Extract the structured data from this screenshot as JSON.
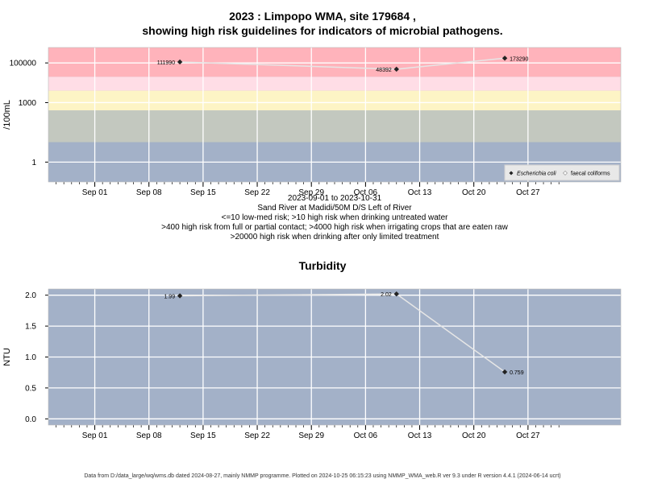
{
  "title_line1": "2023 : Limpopo WMA, site 179684 ,",
  "title_line2": "showing high risk guidelines for indicators of microbial pathogens.",
  "colors": {
    "panel_bg": "#a3b1c8",
    "band_red": "#ffb3bb",
    "band_pink": "#ffdde6",
    "band_yellow": "#fdf4c5",
    "band_green": "#c3c8bf",
    "band_blue": "#a3b1c8",
    "line": "#e6e6e6",
    "marker": "#222222"
  },
  "microbial_notes": [
    "2023-09-01 to 2023-10-31",
    "Sand River at Madidi/50M D/S Left of River",
    "<=10 low-med risk; >10 high risk when drinking untreated water",
    ">400 high risk from full or partial contact; >4000 high risk when irrigating crops that are eaten raw",
    ">20000 high risk when drinking after only limited treatment"
  ],
  "turbidity_title": "Turbidity",
  "footer": "Data from D:/data_large/wq/wms.db dated 2024-08-27, mainly NMMP programme. Plotted on 2024-10-25 06:15:23 using NMMP_WMA_web.R ver 9.3 under R version 4.4.1 (2024-06-14 ucrt)",
  "chart_data": [
    {
      "type": "line",
      "ylabel": "/100mL",
      "yscale": "log",
      "ylim": [
        0.1,
        600000
      ],
      "yticks": [
        1,
        1000,
        100000
      ],
      "ytick_labels": [
        "1",
        "1000",
        "100000"
      ],
      "xlim": [
        "2023-08-26",
        "2023-11-08"
      ],
      "xticks": [
        "2023-09-01",
        "2023-09-08",
        "2023-09-15",
        "2023-09-22",
        "2023-09-29",
        "2023-10-06",
        "2023-10-13",
        "2023-10-20",
        "2023-10-27"
      ],
      "xtick_labels": [
        "Sep 01",
        "Sep 08",
        "Sep 15",
        "Sep 22",
        "Sep 29",
        "Oct 06",
        "Oct 13",
        "Oct 20",
        "Oct 27"
      ],
      "risk_bands": [
        {
          "from": 20000,
          "to": 600000,
          "color": "#ffb3bb"
        },
        {
          "from": 4000,
          "to": 20000,
          "color": "#ffdde6"
        },
        {
          "from": 400,
          "to": 4000,
          "color": "#fdf4c5"
        },
        {
          "from": 10,
          "to": 400,
          "color": "#c3c8bf"
        },
        {
          "from": 0.1,
          "to": 10,
          "color": "#a3b1c8"
        }
      ],
      "series": [
        {
          "name": "Escherichia coli",
          "x": [
            "2023-09-12",
            "2023-10-10",
            "2023-10-24"
          ],
          "y": [
            111990,
            48392,
            173290
          ],
          "labels": [
            "111990",
            "48392",
            "173290"
          ]
        }
      ],
      "legend": {
        "placement": "bottom-right",
        "entries": [
          "Escherichia coli",
          "faecal coliforms"
        ]
      },
      "grid": true
    },
    {
      "type": "line",
      "title": "Turbidity",
      "ylabel": "NTU",
      "ylim": [
        -0.1,
        2.1
      ],
      "yticks": [
        0,
        0.5,
        1,
        1.5,
        2
      ],
      "ytick_labels": [
        "0.0",
        "0.5",
        "1.0",
        "1.5",
        "2.0"
      ],
      "xlim": [
        "2023-08-26",
        "2023-11-08"
      ],
      "xticks": [
        "2023-09-01",
        "2023-09-08",
        "2023-09-15",
        "2023-09-22",
        "2023-09-29",
        "2023-10-06",
        "2023-10-13",
        "2023-10-20",
        "2023-10-27"
      ],
      "xtick_labels": [
        "Sep 01",
        "Sep 08",
        "Sep 15",
        "Sep 22",
        "Sep 29",
        "Oct 06",
        "Oct 13",
        "Oct 20",
        "Oct 27"
      ],
      "series": [
        {
          "x": [
            "2023-09-12",
            "2023-10-10",
            "2023-10-24"
          ],
          "y": [
            1.99,
            2.02,
            0.759
          ],
          "labels": [
            "1.99",
            "2.02",
            "0.759"
          ]
        }
      ],
      "grid": true
    }
  ]
}
